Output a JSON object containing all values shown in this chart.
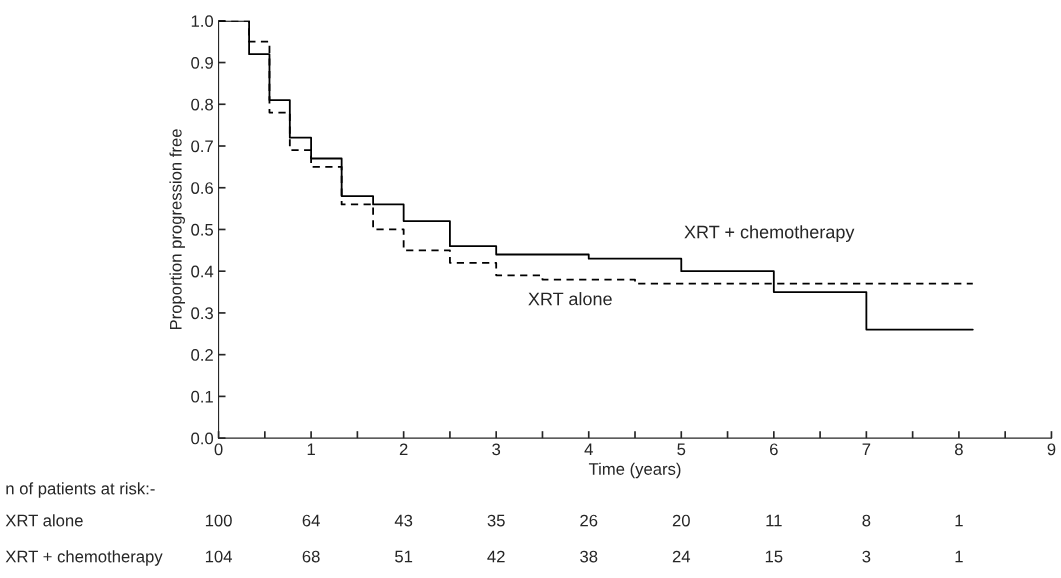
{
  "chart_data": {
    "type": "step",
    "xlabel": "Time (years)",
    "ylabel": "Proportion progression free",
    "series": [
      {
        "name": "XRT + chemotherapy",
        "color": "#000000",
        "line_style": "solid",
        "x": [
          0,
          0.33,
          0.55,
          0.77,
          1.0,
          1.33,
          1.67,
          2.0,
          2.5,
          3.0,
          4.0,
          5.0,
          6.0,
          7.0,
          8.15
        ],
        "values": [
          1.0,
          0.92,
          0.81,
          0.72,
          0.67,
          0.58,
          0.56,
          0.52,
          0.46,
          0.44,
          0.43,
          0.4,
          0.35,
          0.26,
          0.26
        ]
      },
      {
        "name": "XRT alone",
        "color": "#000000",
        "line_style": "dashed",
        "x": [
          0,
          0.33,
          0.55,
          0.77,
          1.0,
          1.33,
          1.67,
          2.0,
          2.5,
          3.0,
          3.5,
          4.5,
          8.15
        ],
        "values": [
          1.0,
          0.95,
          0.78,
          0.69,
          0.65,
          0.56,
          0.5,
          0.45,
          0.42,
          0.39,
          0.38,
          0.37,
          0.37
        ]
      }
    ],
    "xlim": [
      0,
      9
    ],
    "xticks": [
      0,
      {
        "value": 0.5,
        "label": null
      },
      1,
      {
        "value": 1.5,
        "label": null
      },
      2,
      {
        "value": 2.5,
        "label": null
      },
      3,
      {
        "value": 3.5,
        "label": null
      },
      4,
      {
        "value": 4.5,
        "label": null
      },
      5,
      {
        "value": 5.5,
        "label": null
      },
      6,
      {
        "value": 6.5,
        "label": null
      },
      7,
      {
        "value": 7.5,
        "label": null
      },
      8,
      {
        "value": 8.5,
        "label": null
      },
      9
    ],
    "ylim": [
      0,
      1.0
    ],
    "yticks": [
      {
        "value": 0,
        "label": "0.0"
      },
      0.1,
      0.2,
      0.3,
      0.4,
      0.5,
      0.6,
      0.7,
      0.8,
      0.9,
      {
        "value": 1,
        "label": "1.0"
      }
    ],
    "grid": false,
    "legend": false,
    "annotations": [
      "n of patients at risk:-",
      "XRT alone",
      "100",
      "64",
      "43",
      "35",
      "26",
      "20",
      "11",
      "8",
      "1",
      "XRT + chemotherapy",
      "104",
      "68",
      "51",
      "42",
      "38",
      "24",
      "15",
      "3",
      "1"
    ]
  }
}
